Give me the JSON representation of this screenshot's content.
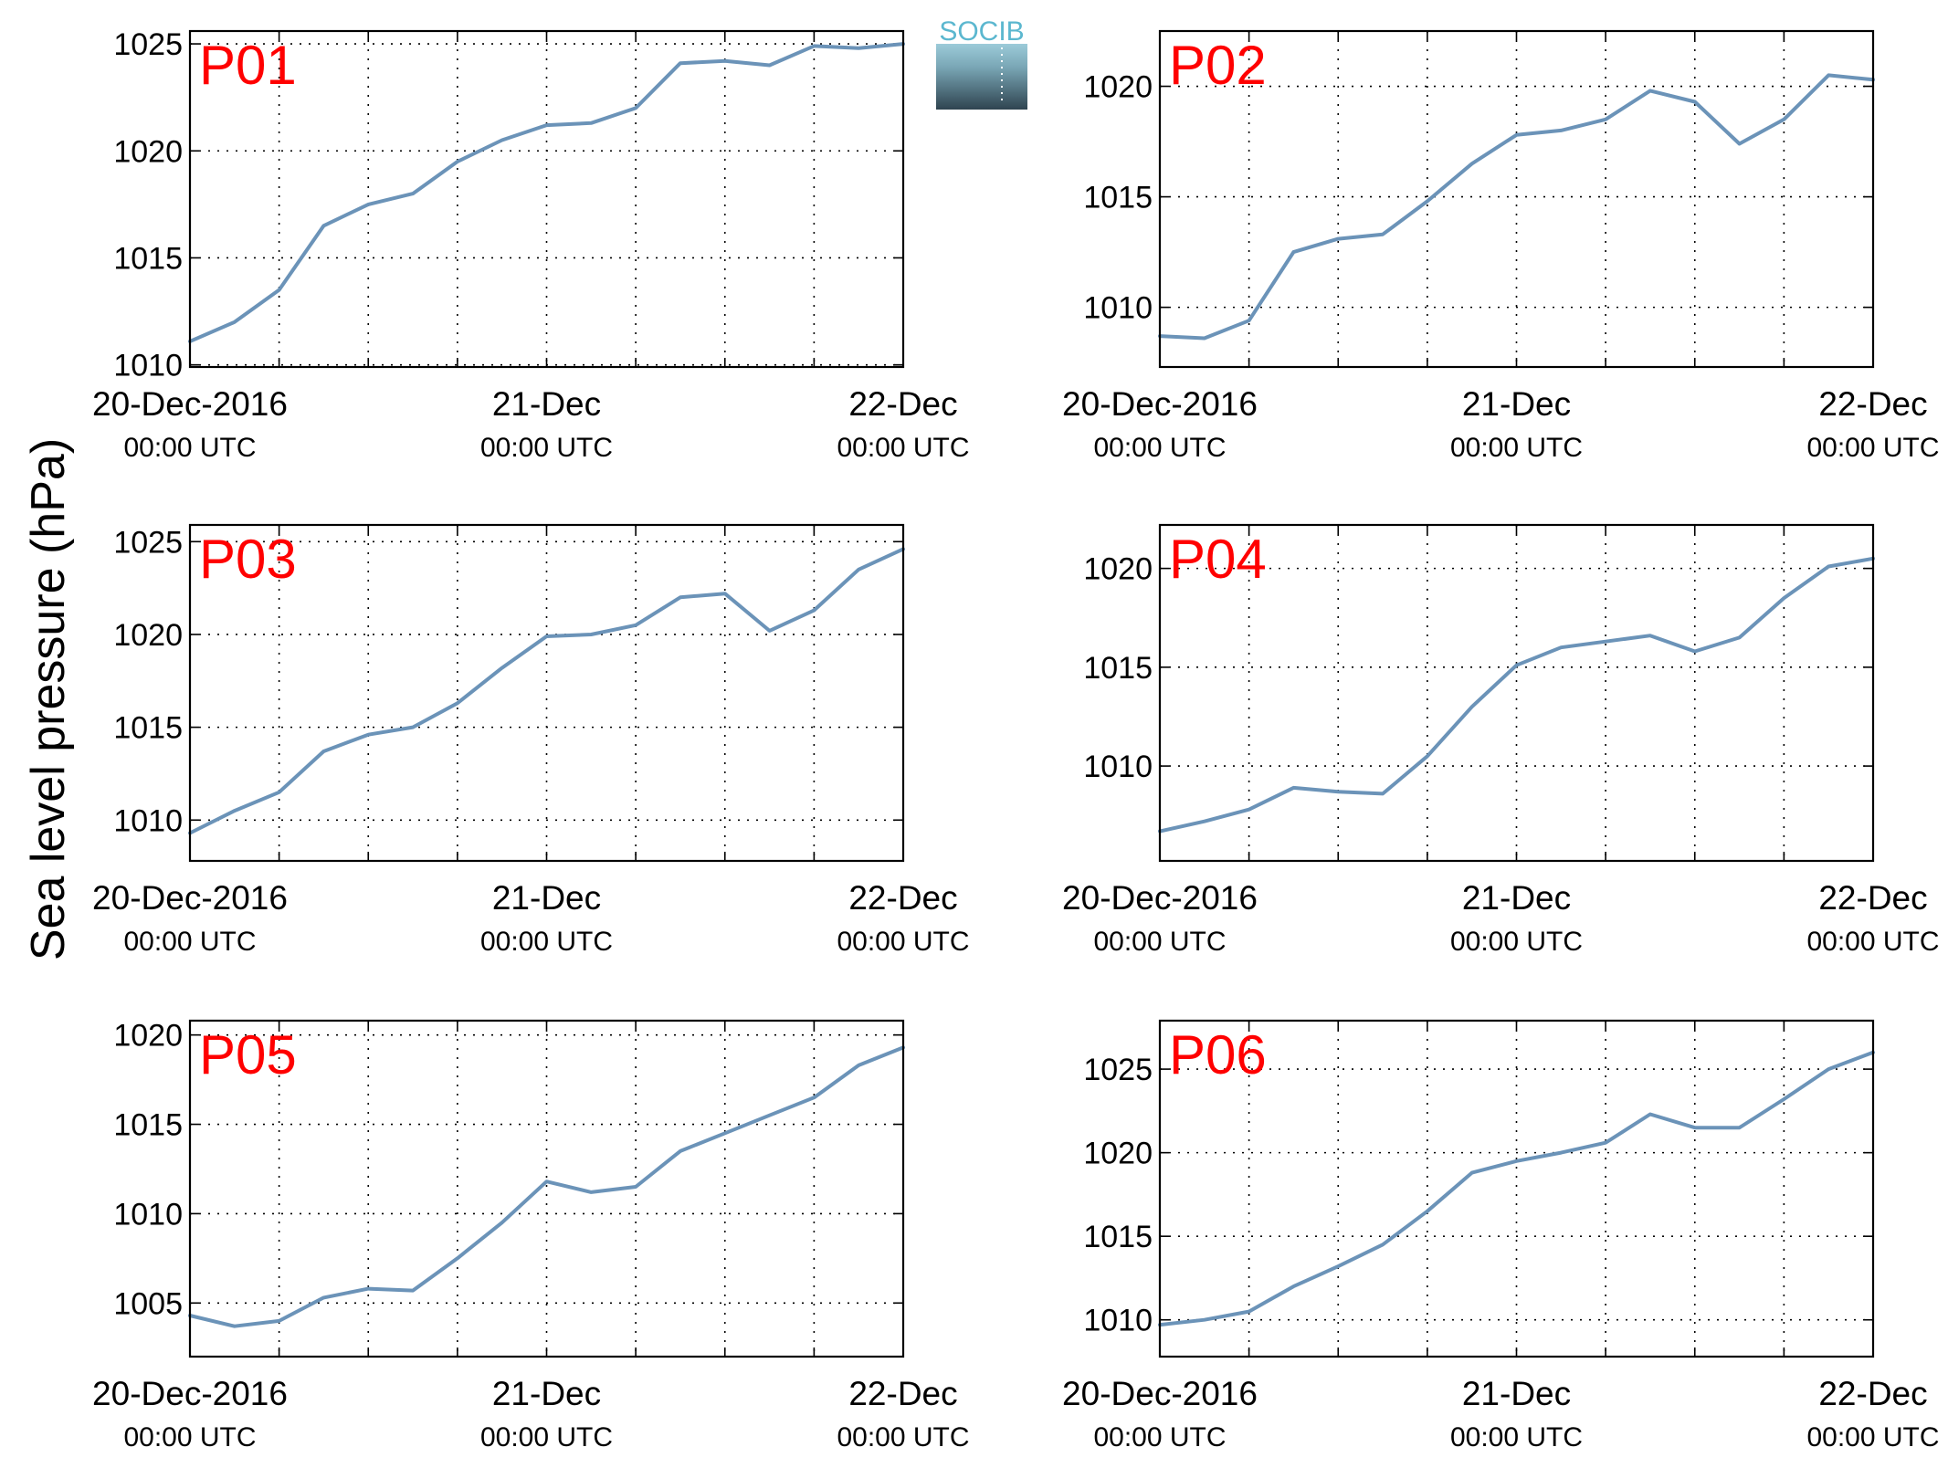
{
  "figure": {
    "ylabel": "Sea level pressure (hPa)",
    "logo_text": "SOCIB",
    "line_color": "#6b93b8",
    "panel_label_color": "#ff0000"
  },
  "chart_data": [
    {
      "type": "line",
      "panel_label": "P01",
      "x_ticks": [
        {
          "value": "2016-12-20T00:00Z",
          "label": "20-Dec-2016",
          "sublabel": "00:00 UTC"
        },
        {
          "value": "2016-12-21T00:00Z",
          "label": "21-Dec",
          "sublabel": "00:00 UTC"
        },
        {
          "value": "2016-12-22T00:00Z",
          "label": "22-Dec",
          "sublabel": "00:00 UTC"
        }
      ],
      "xlim": [
        "2016-12-20T00:00Z",
        "2016-12-22T00:00Z"
      ],
      "ylim": [
        1009.9,
        1025.6
      ],
      "y_ticks": [
        1010,
        1015,
        1020,
        1025
      ],
      "grid": true,
      "series": [
        {
          "x": [
            "2016-12-20T00:00Z",
            "2016-12-20T03:00Z",
            "2016-12-20T06:00Z",
            "2016-12-20T09:00Z",
            "2016-12-20T12:00Z",
            "2016-12-20T15:00Z",
            "2016-12-20T18:00Z",
            "2016-12-20T21:00Z",
            "2016-12-21T00:00Z",
            "2016-12-21T03:00Z",
            "2016-12-21T06:00Z",
            "2016-12-21T09:00Z",
            "2016-12-21T12:00Z",
            "2016-12-21T15:00Z",
            "2016-12-21T18:00Z",
            "2016-12-21T21:00Z",
            "2016-12-22T00:00Z"
          ],
          "y": [
            1011.1,
            1012.0,
            1013.5,
            1016.5,
            1017.5,
            1018.0,
            1019.5,
            1020.5,
            1021.2,
            1021.3,
            1022.0,
            1024.1,
            1024.2,
            1024.0,
            1024.9,
            1024.8,
            1025.0
          ]
        }
      ]
    },
    {
      "type": "line",
      "panel_label": "P02",
      "x_ticks": [
        {
          "value": "2016-12-20T00:00Z",
          "label": "20-Dec-2016",
          "sublabel": "00:00 UTC"
        },
        {
          "value": "2016-12-21T00:00Z",
          "label": "21-Dec",
          "sublabel": "00:00 UTC"
        },
        {
          "value": "2016-12-22T00:00Z",
          "label": "22-Dec",
          "sublabel": "00:00 UTC"
        }
      ],
      "xlim": [
        "2016-12-20T00:00Z",
        "2016-12-22T00:00Z"
      ],
      "ylim": [
        1007.3,
        1022.5
      ],
      "y_ticks": [
        1010,
        1015,
        1020
      ],
      "grid": true,
      "series": [
        {
          "x": [
            "2016-12-20T00:00Z",
            "2016-12-20T03:00Z",
            "2016-12-20T06:00Z",
            "2016-12-20T09:00Z",
            "2016-12-20T12:00Z",
            "2016-12-20T15:00Z",
            "2016-12-20T18:00Z",
            "2016-12-20T21:00Z",
            "2016-12-21T00:00Z",
            "2016-12-21T03:00Z",
            "2016-12-21T06:00Z",
            "2016-12-21T09:00Z",
            "2016-12-21T12:00Z",
            "2016-12-21T15:00Z",
            "2016-12-21T18:00Z",
            "2016-12-21T21:00Z",
            "2016-12-22T00:00Z"
          ],
          "y": [
            1008.7,
            1008.6,
            1009.4,
            1012.5,
            1013.1,
            1013.3,
            1014.8,
            1016.5,
            1017.8,
            1018.0,
            1018.5,
            1019.8,
            1019.3,
            1017.4,
            1018.5,
            1020.5,
            1020.3
          ]
        }
      ]
    },
    {
      "type": "line",
      "panel_label": "P03",
      "x_ticks": [
        {
          "value": "2016-12-20T00:00Z",
          "label": "20-Dec-2016",
          "sublabel": "00:00 UTC"
        },
        {
          "value": "2016-12-21T00:00Z",
          "label": "21-Dec",
          "sublabel": "00:00 UTC"
        },
        {
          "value": "2016-12-22T00:00Z",
          "label": "22-Dec",
          "sublabel": "00:00 UTC"
        }
      ],
      "xlim": [
        "2016-12-20T00:00Z",
        "2016-12-22T00:00Z"
      ],
      "ylim": [
        1007.8,
        1025.9
      ],
      "y_ticks": [
        1010,
        1015,
        1020,
        1025
      ],
      "grid": true,
      "series": [
        {
          "x": [
            "2016-12-20T00:00Z",
            "2016-12-20T03:00Z",
            "2016-12-20T06:00Z",
            "2016-12-20T09:00Z",
            "2016-12-20T12:00Z",
            "2016-12-20T15:00Z",
            "2016-12-20T18:00Z",
            "2016-12-20T21:00Z",
            "2016-12-21T00:00Z",
            "2016-12-21T03:00Z",
            "2016-12-21T06:00Z",
            "2016-12-21T09:00Z",
            "2016-12-21T12:00Z",
            "2016-12-21T15:00Z",
            "2016-12-21T18:00Z",
            "2016-12-21T21:00Z",
            "2016-12-22T00:00Z"
          ],
          "y": [
            1009.3,
            1010.5,
            1011.5,
            1013.7,
            1014.6,
            1015.0,
            1016.3,
            1018.2,
            1019.9,
            1020.0,
            1020.5,
            1022.0,
            1022.2,
            1020.2,
            1021.3,
            1023.5,
            1024.6
          ]
        }
      ]
    },
    {
      "type": "line",
      "panel_label": "P04",
      "x_ticks": [
        {
          "value": "2016-12-20T00:00Z",
          "label": "20-Dec-2016",
          "sublabel": "00:00 UTC"
        },
        {
          "value": "2016-12-21T00:00Z",
          "label": "21-Dec",
          "sublabel": "00:00 UTC"
        },
        {
          "value": "2016-12-22T00:00Z",
          "label": "22-Dec",
          "sublabel": "00:00 UTC"
        }
      ],
      "xlim": [
        "2016-12-20T00:00Z",
        "2016-12-22T00:00Z"
      ],
      "ylim": [
        1005.2,
        1022.2
      ],
      "y_ticks": [
        1010,
        1015,
        1020
      ],
      "grid": true,
      "series": [
        {
          "x": [
            "2016-12-20T00:00Z",
            "2016-12-20T03:00Z",
            "2016-12-20T06:00Z",
            "2016-12-20T09:00Z",
            "2016-12-20T12:00Z",
            "2016-12-20T15:00Z",
            "2016-12-20T18:00Z",
            "2016-12-20T21:00Z",
            "2016-12-21T00:00Z",
            "2016-12-21T03:00Z",
            "2016-12-21T06:00Z",
            "2016-12-21T09:00Z",
            "2016-12-21T12:00Z",
            "2016-12-21T15:00Z",
            "2016-12-21T18:00Z",
            "2016-12-21T21:00Z",
            "2016-12-22T00:00Z"
          ],
          "y": [
            1006.7,
            1007.2,
            1007.8,
            1008.9,
            1008.7,
            1008.6,
            1010.5,
            1013.0,
            1015.1,
            1016.0,
            1016.3,
            1016.6,
            1015.8,
            1016.5,
            1018.5,
            1020.1,
            1020.5
          ]
        }
      ]
    },
    {
      "type": "line",
      "panel_label": "P05",
      "x_ticks": [
        {
          "value": "2016-12-20T00:00Z",
          "label": "20-Dec-2016",
          "sublabel": "00:00 UTC"
        },
        {
          "value": "2016-12-21T00:00Z",
          "label": "21-Dec",
          "sublabel": "00:00 UTC"
        },
        {
          "value": "2016-12-22T00:00Z",
          "label": "22-Dec",
          "sublabel": "00:00 UTC"
        }
      ],
      "xlim": [
        "2016-12-20T00:00Z",
        "2016-12-22T00:00Z"
      ],
      "ylim": [
        1002.0,
        1020.8
      ],
      "y_ticks": [
        1005,
        1010,
        1015,
        1020
      ],
      "grid": true,
      "series": [
        {
          "x": [
            "2016-12-20T00:00Z",
            "2016-12-20T03:00Z",
            "2016-12-20T06:00Z",
            "2016-12-20T09:00Z",
            "2016-12-20T12:00Z",
            "2016-12-20T15:00Z",
            "2016-12-20T18:00Z",
            "2016-12-20T21:00Z",
            "2016-12-21T00:00Z",
            "2016-12-21T03:00Z",
            "2016-12-21T06:00Z",
            "2016-12-21T09:00Z",
            "2016-12-21T12:00Z",
            "2016-12-21T15:00Z",
            "2016-12-21T18:00Z",
            "2016-12-21T21:00Z",
            "2016-12-22T00:00Z"
          ],
          "y": [
            1004.3,
            1003.7,
            1004.0,
            1005.3,
            1005.8,
            1005.7,
            1007.5,
            1009.5,
            1011.8,
            1011.2,
            1011.5,
            1013.5,
            1014.5,
            1015.5,
            1016.5,
            1018.3,
            1019.3
          ]
        }
      ]
    },
    {
      "type": "line",
      "panel_label": "P06",
      "x_ticks": [
        {
          "value": "2016-12-20T00:00Z",
          "label": "20-Dec-2016",
          "sublabel": "00:00 UTC"
        },
        {
          "value": "2016-12-21T00:00Z",
          "label": "21-Dec",
          "sublabel": "00:00 UTC"
        },
        {
          "value": "2016-12-22T00:00Z",
          "label": "22-Dec",
          "sublabel": "00:00 UTC"
        }
      ],
      "xlim": [
        "2016-12-20T00:00Z",
        "2016-12-22T00:00Z"
      ],
      "ylim": [
        1007.8,
        1027.9
      ],
      "y_ticks": [
        1010,
        1015,
        1020,
        1025
      ],
      "grid": true,
      "series": [
        {
          "x": [
            "2016-12-20T00:00Z",
            "2016-12-20T03:00Z",
            "2016-12-20T06:00Z",
            "2016-12-20T09:00Z",
            "2016-12-20T12:00Z",
            "2016-12-20T15:00Z",
            "2016-12-20T18:00Z",
            "2016-12-20T21:00Z",
            "2016-12-21T00:00Z",
            "2016-12-21T03:00Z",
            "2016-12-21T06:00Z",
            "2016-12-21T09:00Z",
            "2016-12-21T12:00Z",
            "2016-12-21T15:00Z",
            "2016-12-21T18:00Z",
            "2016-12-21T21:00Z",
            "2016-12-22T00:00Z"
          ],
          "y": [
            1009.7,
            1010.0,
            1010.5,
            1012.0,
            1013.2,
            1014.5,
            1016.5,
            1018.8,
            1019.5,
            1020.0,
            1020.6,
            1022.3,
            1021.5,
            1021.5,
            1023.2,
            1025.0,
            1026.0
          ]
        }
      ]
    }
  ]
}
